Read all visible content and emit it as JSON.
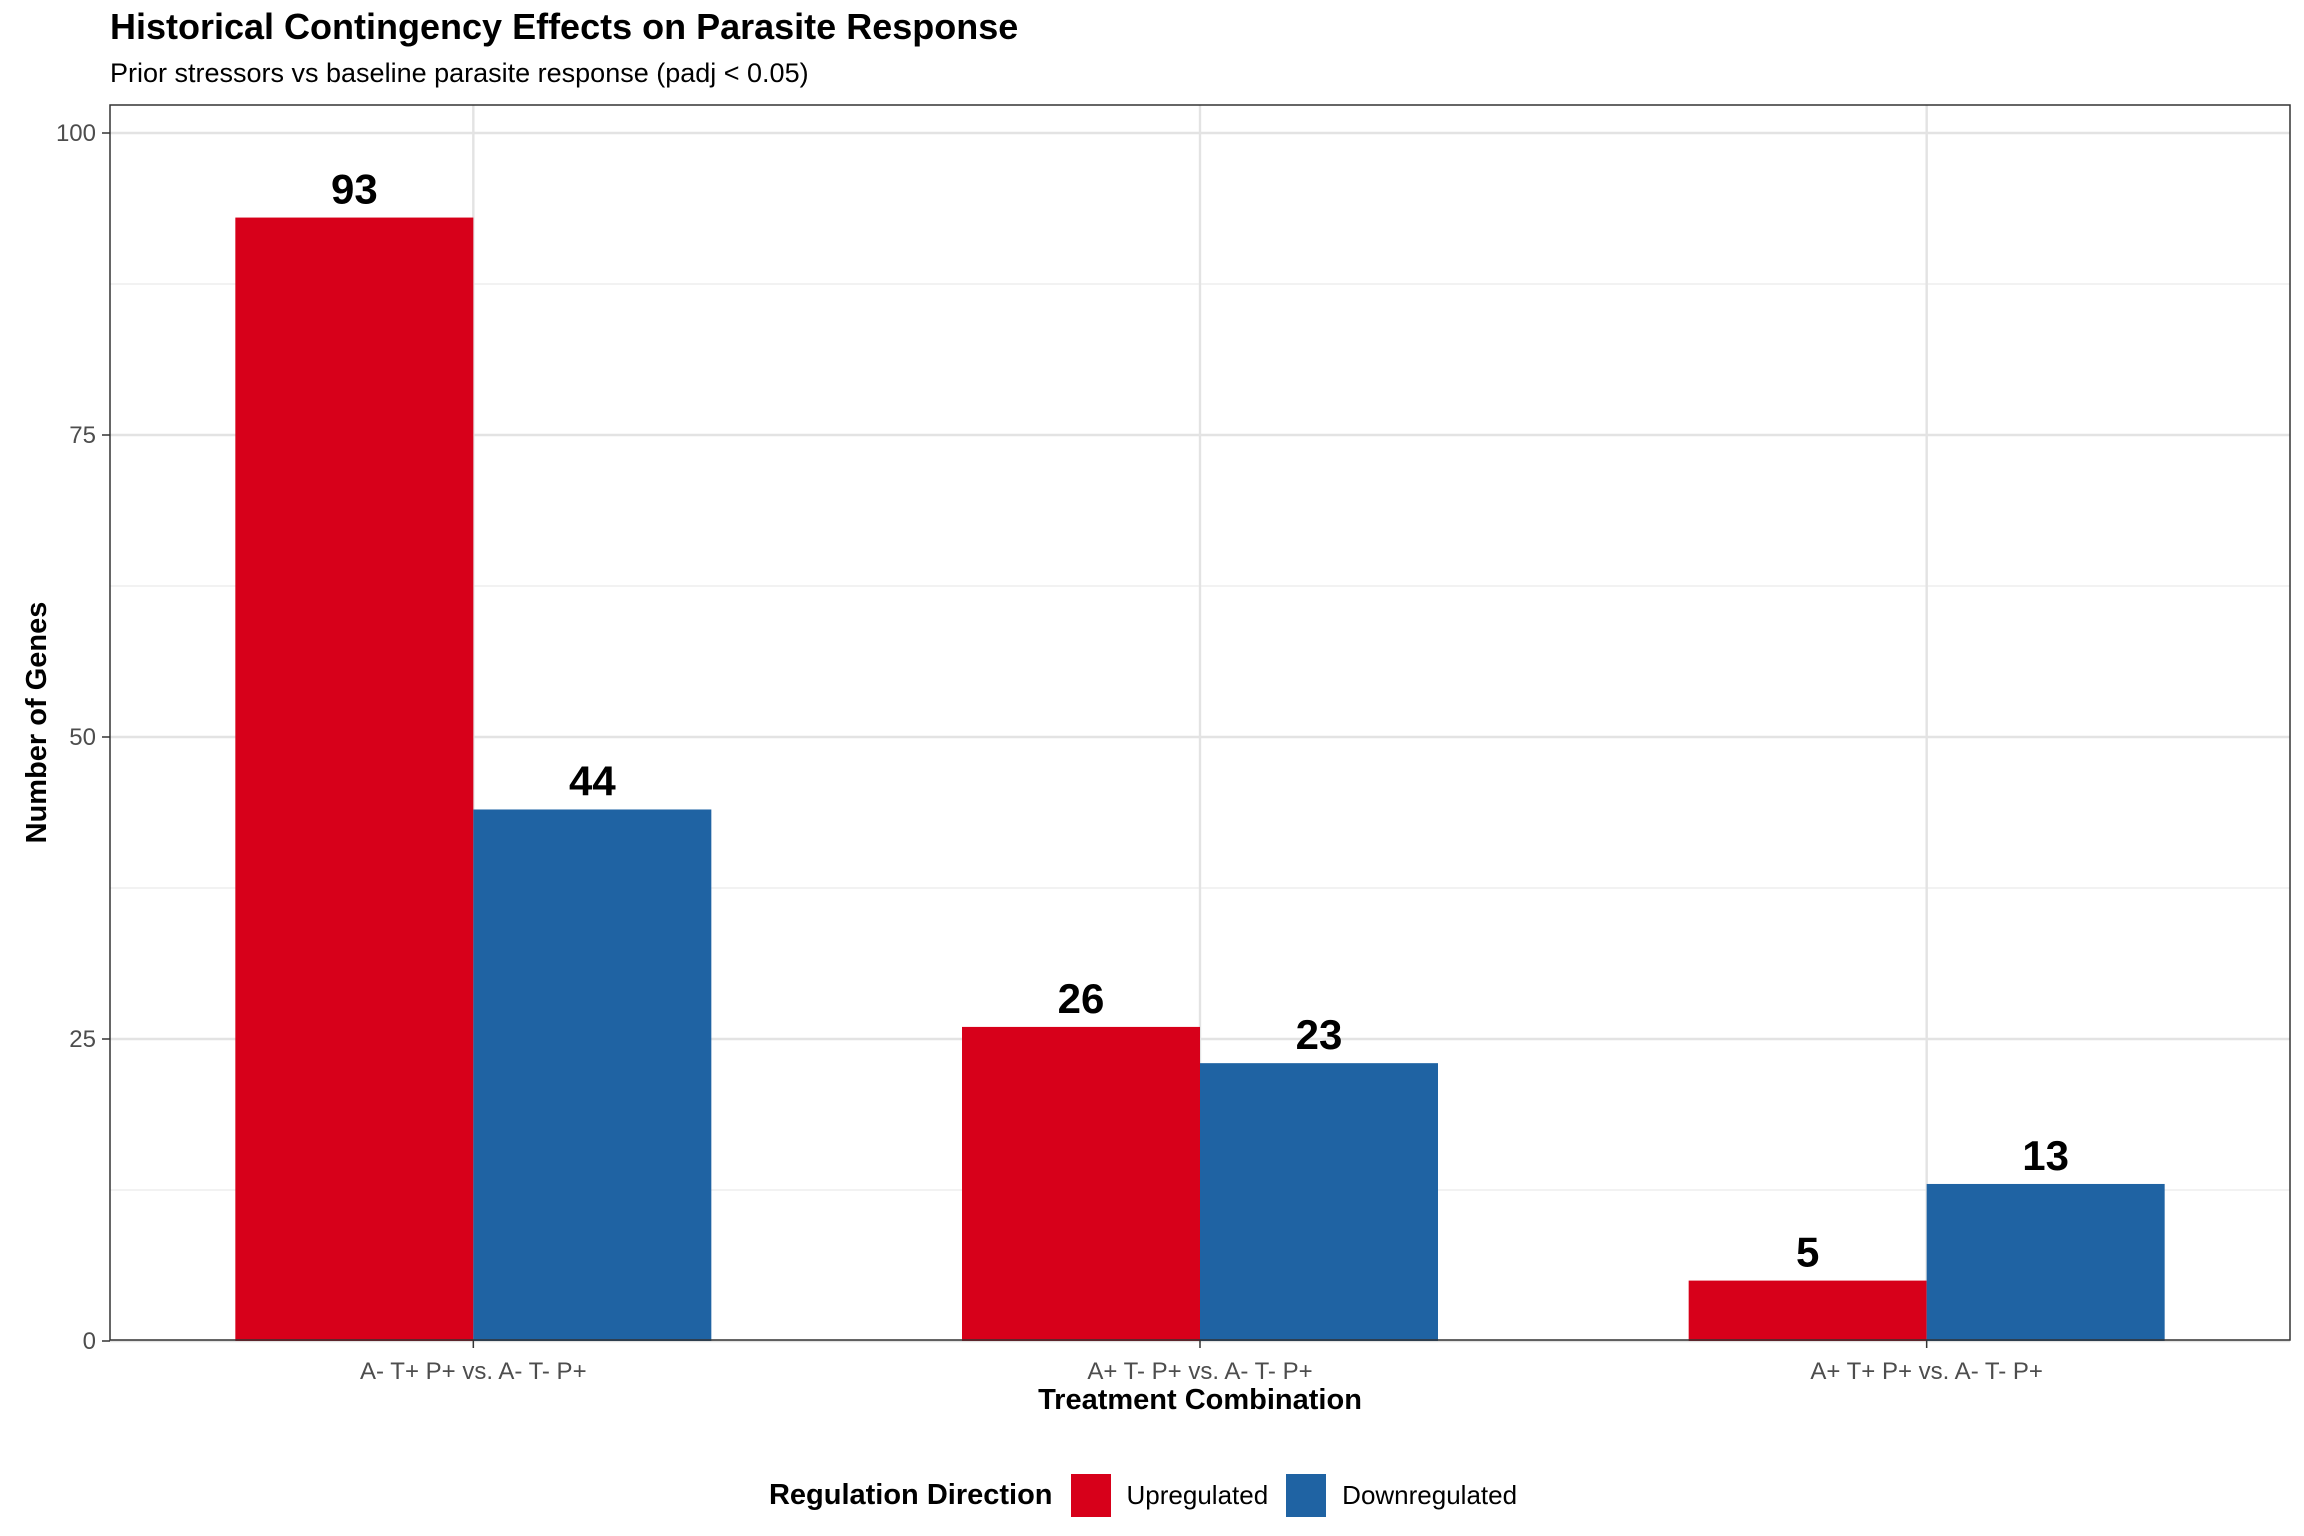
{
  "chart_data": {
    "type": "bar",
    "title": "Historical Contingency Effects on Parasite Response",
    "subtitle": "Prior stressors vs baseline parasite response (padj < 0.05)",
    "xlabel": "Treatment Combination",
    "ylabel": "Number of Genes",
    "categories": [
      "A- T+ P+ vs. A- T- P+",
      "A+ T- P+ vs. A- T- P+",
      "A+ T+ P+ vs. A- T- P+"
    ],
    "series": [
      {
        "name": "Upregulated",
        "values": [
          93,
          26,
          5
        ],
        "color": "#D7001A"
      },
      {
        "name": "Downregulated",
        "values": [
          44,
          23,
          13
        ],
        "color": "#1F63A3"
      }
    ],
    "ylim": [
      0,
      100
    ],
    "yticks": [
      0,
      25,
      50,
      75,
      100
    ],
    "grid": true,
    "legend_title": "Regulation Direction",
    "legend_position": "bottom"
  }
}
